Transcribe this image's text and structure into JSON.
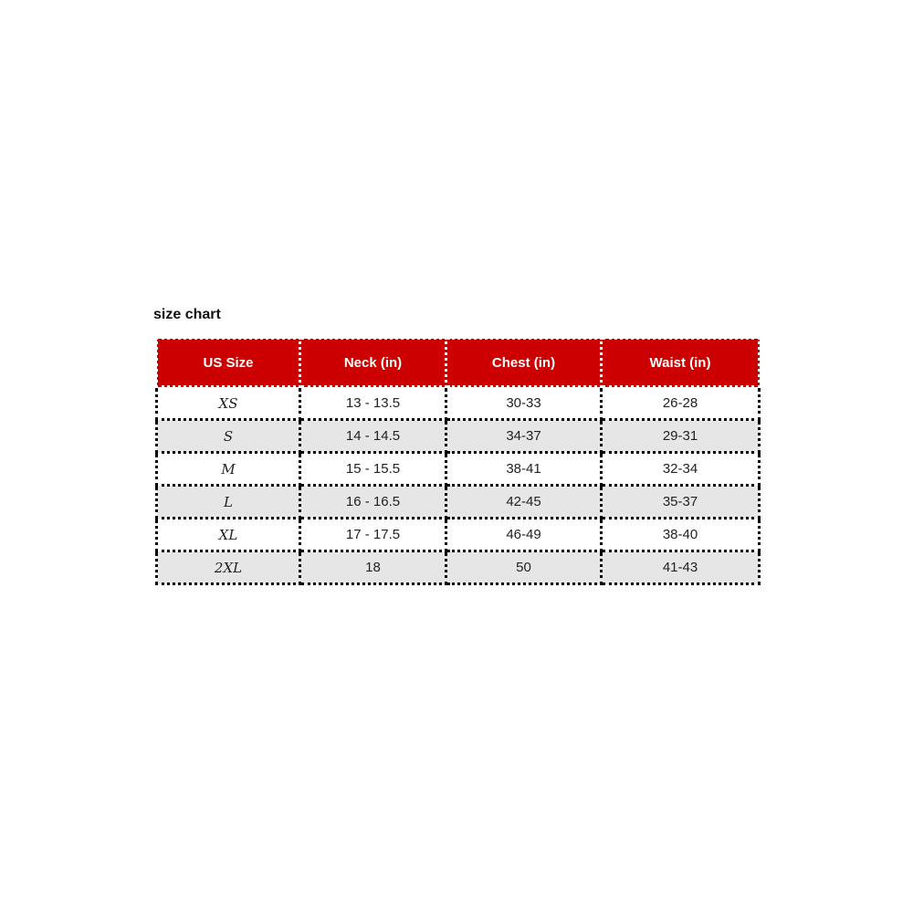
{
  "title": "size chart",
  "colors": {
    "header_bg": "#cc0000",
    "header_text": "#ffffff",
    "alt_row_bg": "#e6e6e6",
    "border": "#000000"
  },
  "chart_data": {
    "type": "table",
    "columns": [
      "US Size",
      "Neck (in)",
      "Chest (in)",
      "Waist (in)"
    ],
    "rows": [
      [
        "XS",
        "13 - 13.5",
        "30-33",
        "26-28"
      ],
      [
        "S",
        "14 - 14.5",
        "34-37",
        "29-31"
      ],
      [
        "M",
        "15 - 15.5",
        "38-41",
        "32-34"
      ],
      [
        "L",
        "16 - 16.5",
        "42-45",
        "35-37"
      ],
      [
        "XL",
        "17 - 17.5",
        "46-49",
        "38-40"
      ],
      [
        "2XL",
        "18",
        "50",
        "41-43"
      ]
    ]
  }
}
